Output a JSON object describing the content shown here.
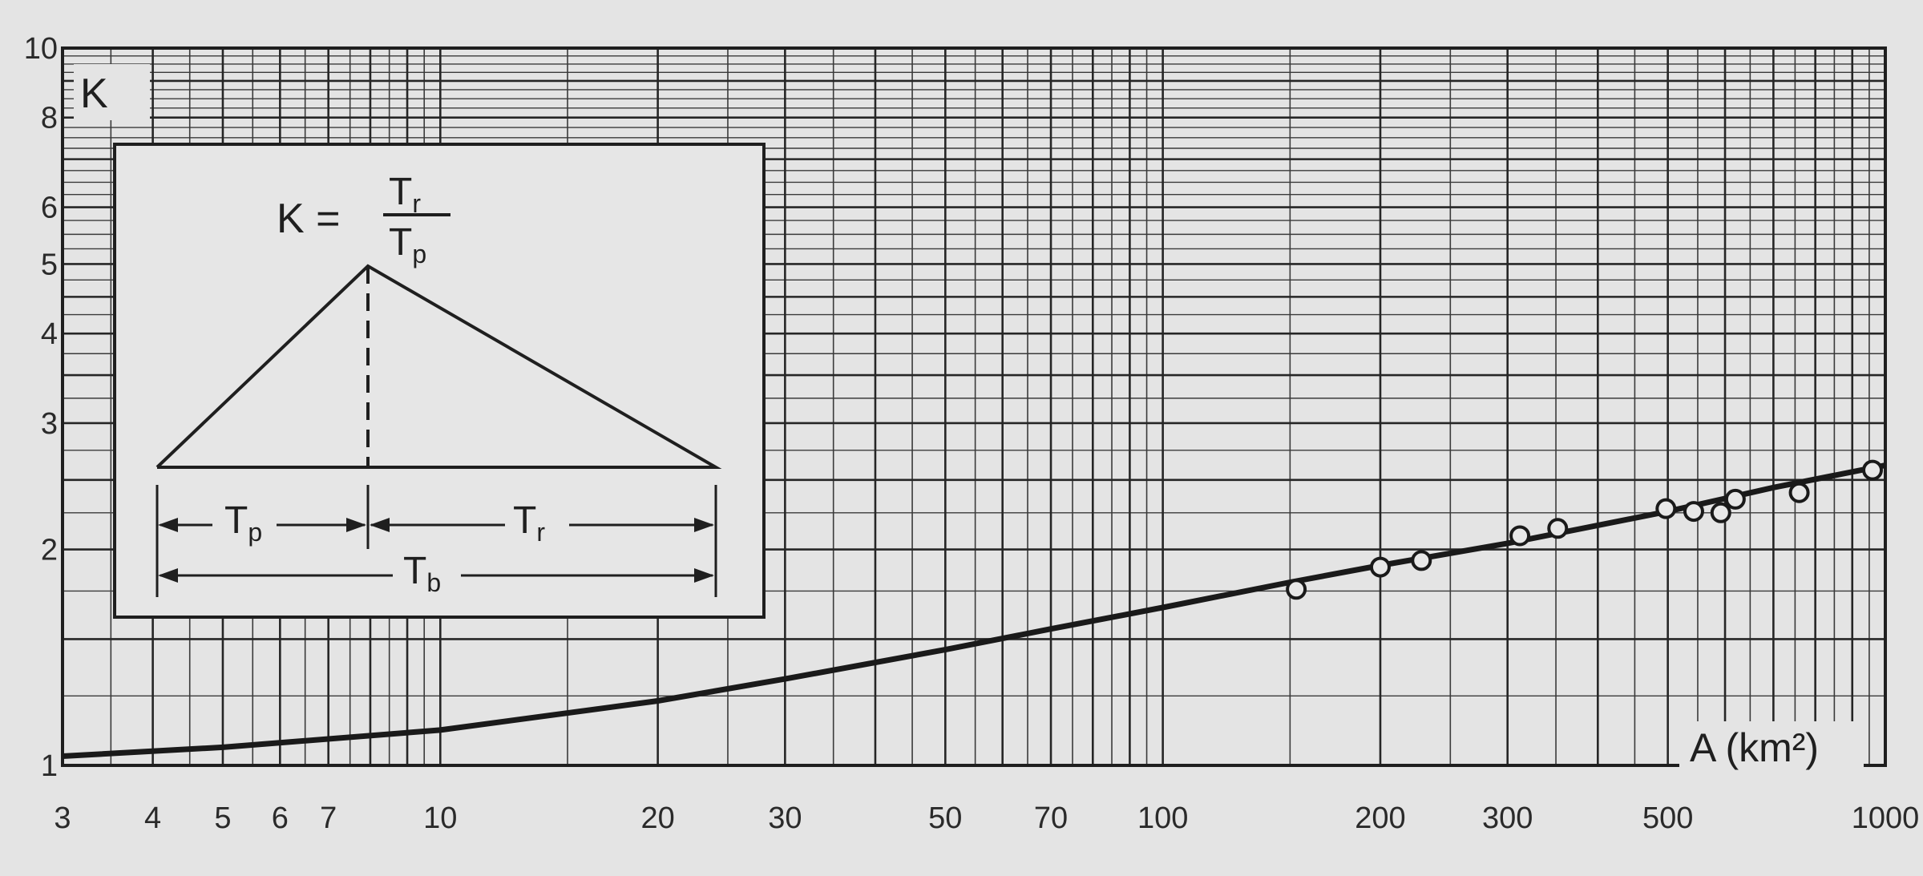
{
  "chart_data": {
    "type": "line",
    "title": "",
    "xlabel": "A (km²)",
    "ylabel": "K",
    "xscale": "log",
    "yscale": "log",
    "xlim": [
      3,
      1000
    ],
    "ylim": [
      1,
      10
    ],
    "grid": true,
    "x_ticks": [
      3,
      4,
      5,
      6,
      7,
      10,
      20,
      30,
      50,
      70,
      100,
      200,
      300,
      500,
      1000
    ],
    "x_tick_labels": [
      "3",
      "4",
      "5",
      "6",
      "7",
      "10",
      "20",
      "30",
      "50",
      "70",
      "100",
      "200",
      "300",
      "500",
      "1000"
    ],
    "y_ticks": [
      1,
      2,
      3,
      4,
      5,
      6,
      8,
      10
    ],
    "y_tick_labels": [
      "1",
      "2",
      "3",
      "4",
      "5",
      "6",
      "8",
      "10"
    ],
    "series": [
      {
        "name": "fitted curve",
        "style": "line",
        "x": [
          3,
          5,
          10,
          20,
          30,
          50,
          70,
          100,
          150,
          200,
          300,
          500,
          700,
          1000
        ],
        "y": [
          1.03,
          1.06,
          1.12,
          1.23,
          1.32,
          1.45,
          1.55,
          1.66,
          1.8,
          1.9,
          2.04,
          2.26,
          2.44,
          2.62
        ]
      },
      {
        "name": "observations",
        "style": "scatter",
        "x": [
          153,
          200,
          228,
          312,
          352,
          497,
          543,
          592,
          620,
          760,
          960
        ],
        "y": [
          1.76,
          1.89,
          1.93,
          2.09,
          2.14,
          2.28,
          2.26,
          2.25,
          2.35,
          2.4,
          2.58
        ]
      }
    ],
    "inset": {
      "formula_lhs": "K =",
      "numerator": "T",
      "numerator_sub": "r",
      "denominator": "T",
      "denominator_sub": "p",
      "label_tp": "T",
      "label_tp_sub": "p",
      "label_tr": "T",
      "label_tr_sub": "r",
      "label_tb": "T",
      "label_tb_sub": "b"
    }
  },
  "colors": {
    "background": "#e4e4e4",
    "ink": "#1f1f1f",
    "grid": "#2e2e2e",
    "inset_fill": "#e6e6e6"
  }
}
